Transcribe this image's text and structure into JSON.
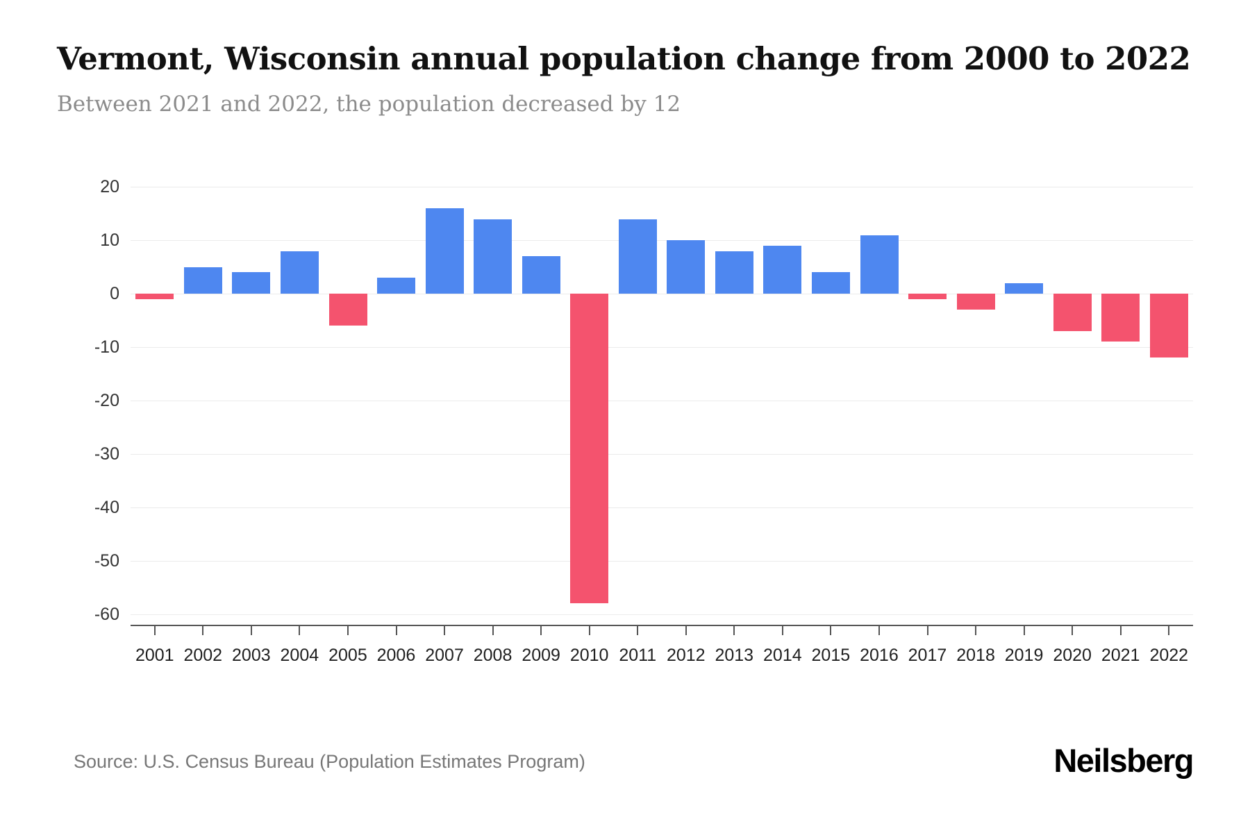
{
  "header": {
    "title": "Vermont, Wisconsin annual population change from 2000 to 2022",
    "subtitle": "Between 2021 and 2022, the population decreased by 12"
  },
  "chart_data": {
    "type": "bar",
    "title": "Vermont, Wisconsin annual population change from 2000 to 2022",
    "categories": [
      "2001",
      "2002",
      "2003",
      "2004",
      "2005",
      "2006",
      "2007",
      "2008",
      "2009",
      "2010",
      "2011",
      "2012",
      "2013",
      "2014",
      "2015",
      "2016",
      "2017",
      "2018",
      "2019",
      "2020",
      "2021",
      "2022"
    ],
    "values": [
      -1,
      5,
      4,
      8,
      -6,
      3,
      16,
      14,
      7,
      -58,
      14,
      10,
      8,
      9,
      4,
      11,
      -1,
      -3,
      2,
      -7,
      -9,
      -12
    ],
    "xlabel": "",
    "ylabel": "",
    "ylim": [
      -62,
      22
    ],
    "yticks": [
      20,
      10,
      0,
      -10,
      -20,
      -30,
      -40,
      -50,
      -60
    ],
    "grid": true,
    "legend": "none",
    "positive_color": "#4e87f0",
    "negative_color": "#f4536e"
  },
  "footer": {
    "source": "Source: U.S. Census Bureau (Population Estimates Program)",
    "brand": "Neilsberg"
  }
}
